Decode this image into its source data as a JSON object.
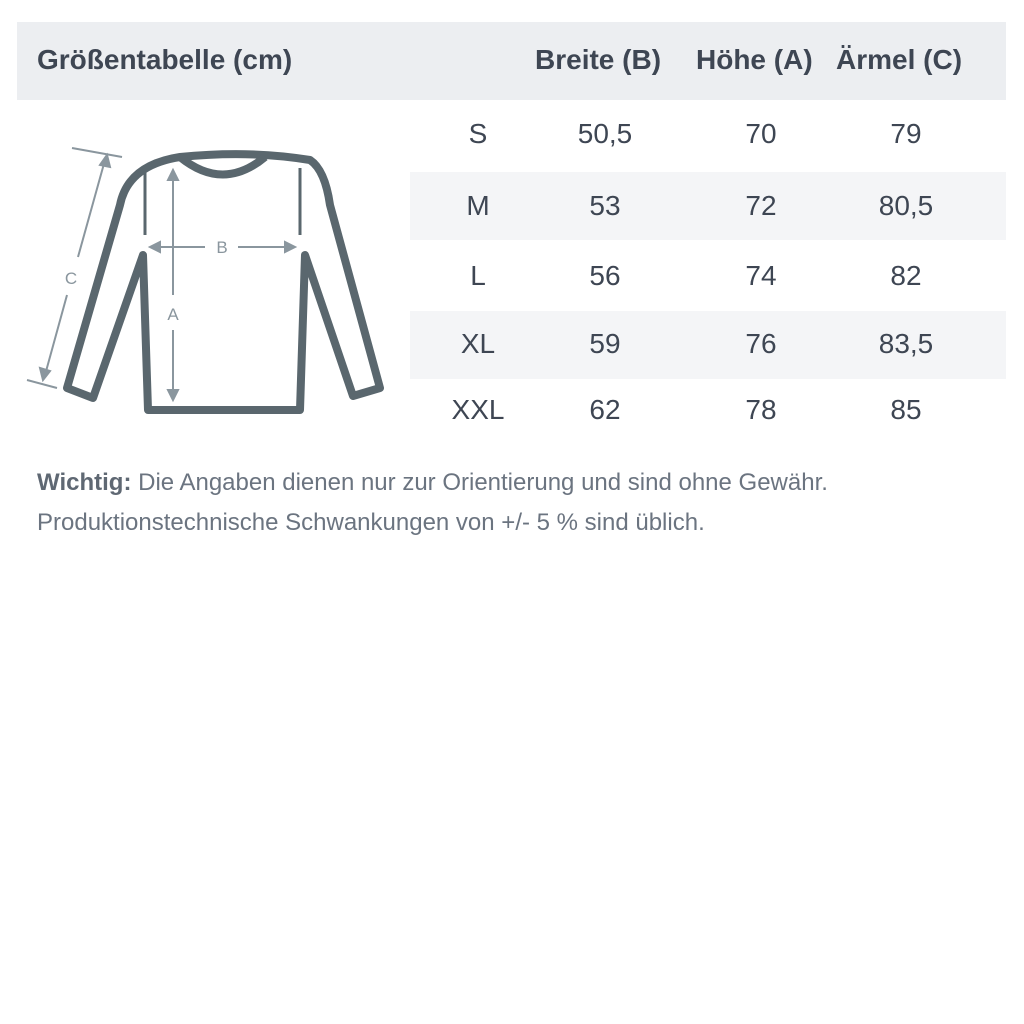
{
  "header": {
    "title": "Größentabelle (cm)",
    "columns": [
      "Breite (B)",
      "Höhe (A)",
      "Ärmel (C)"
    ]
  },
  "rows": [
    {
      "size": "S",
      "breite": "50,5",
      "hoehe": "70",
      "aermel": "79"
    },
    {
      "size": "M",
      "breite": "53",
      "hoehe": "72",
      "aermel": "80,5"
    },
    {
      "size": "L",
      "breite": "56",
      "hoehe": "74",
      "aermel": "82"
    },
    {
      "size": "XL",
      "breite": "59",
      "hoehe": "76",
      "aermel": "83,5"
    },
    {
      "size": "XXL",
      "breite": "62",
      "hoehe": "78",
      "aermel": "85"
    }
  ],
  "diagram": {
    "label_a": "A",
    "label_b": "B",
    "label_c": "C"
  },
  "note": {
    "bold": "Wichtig:",
    "line1": " Die Angaben dienen nur zur Orientierung und sind ohne Gewähr.",
    "line2": "Produktionstechnische Schwankungen von +/- 5 % sind üblich."
  },
  "colors": {
    "text": "#3e4653",
    "header_bg": "#eceef1",
    "shirt": "#5a676e",
    "arrows": "#8a969e"
  }
}
